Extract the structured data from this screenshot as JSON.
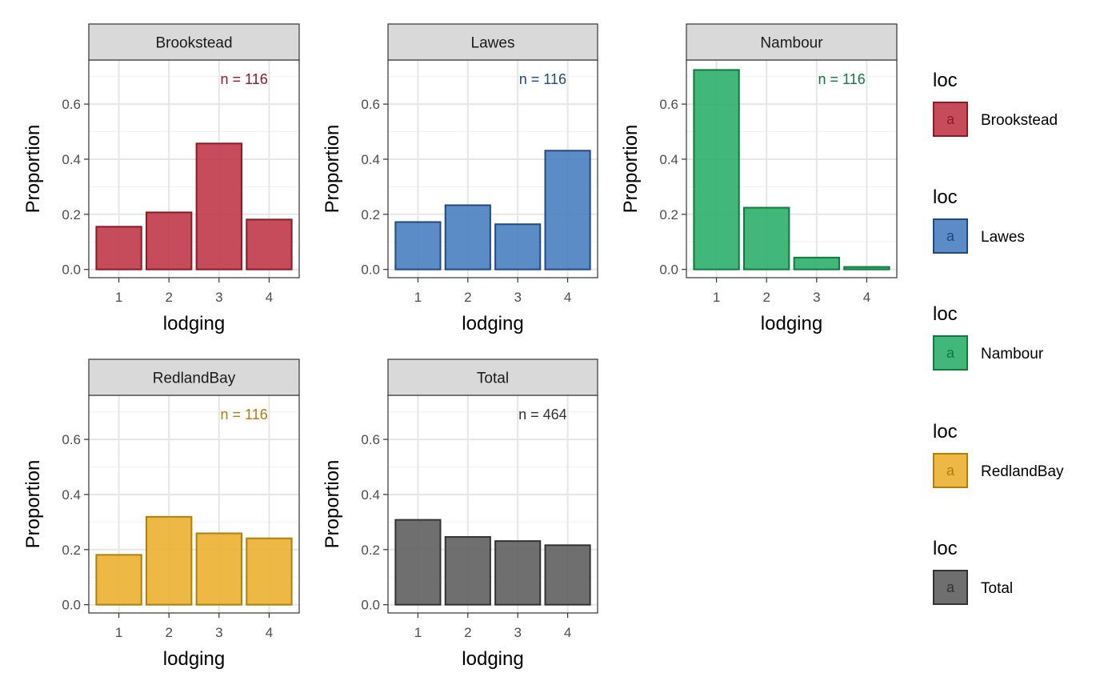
{
  "chart_data": [
    {
      "type": "bar",
      "facet": "Brookstead",
      "annotation": "n = 116",
      "color": "#c0394a",
      "border": "#8b1a24",
      "xlabel": "lodging",
      "ylabel": "Proportion",
      "categories": [
        "1",
        "2",
        "3",
        "4"
      ],
      "values": [
        0.155,
        0.207,
        0.457,
        0.181
      ],
      "ylim": [
        -0.03,
        0.76
      ],
      "yticks": [
        "0.0",
        "0.2",
        "0.4",
        "0.6"
      ]
    },
    {
      "type": "bar",
      "facet": "Lawes",
      "annotation": "n = 116",
      "color": "#4a7fbf",
      "border": "#1f4a82",
      "xlabel": "lodging",
      "ylabel": "Proportion",
      "categories": [
        "1",
        "2",
        "3",
        "4"
      ],
      "values": [
        0.172,
        0.233,
        0.164,
        0.431
      ],
      "ylim": [
        -0.03,
        0.76
      ],
      "yticks": [
        "0.0",
        "0.2",
        "0.4",
        "0.6"
      ]
    },
    {
      "type": "bar",
      "facet": "Nambour",
      "annotation": "n = 116",
      "color": "#2eaf6b",
      "border": "#0e7a3c",
      "xlabel": "lodging",
      "ylabel": "Proportion",
      "categories": [
        "1",
        "2",
        "3",
        "4"
      ],
      "values": [
        0.724,
        0.224,
        0.043,
        0.009
      ],
      "ylim": [
        -0.03,
        0.76
      ],
      "yticks": [
        "0.0",
        "0.2",
        "0.4",
        "0.6"
      ]
    },
    {
      "type": "bar",
      "facet": "RedlandBay",
      "annotation": "n = 116",
      "color": "#ebb030",
      "border": "#b07f0c",
      "xlabel": "lodging",
      "ylabel": "Proportion",
      "categories": [
        "1",
        "2",
        "3",
        "4"
      ],
      "values": [
        0.181,
        0.319,
        0.259,
        0.241
      ],
      "ylim": [
        -0.03,
        0.76
      ],
      "yticks": [
        "0.0",
        "0.2",
        "0.4",
        "0.6"
      ]
    },
    {
      "type": "bar",
      "facet": "Total",
      "annotation": "n = 464",
      "color": "#5f5f5f",
      "border": "#333333",
      "xlabel": "lodging",
      "ylabel": "Proportion",
      "categories": [
        "1",
        "2",
        "3",
        "4"
      ],
      "values": [
        0.308,
        0.246,
        0.231,
        0.216
      ],
      "ylim": [
        -0.03,
        0.76
      ],
      "yticks": [
        "0.0",
        "0.2",
        "0.4",
        "0.6"
      ]
    }
  ],
  "legend": [
    {
      "title": "loc",
      "label": "Brookstead",
      "key_glyph": "a",
      "color": "#c0394a",
      "border": "#8b1a24"
    },
    {
      "title": "loc",
      "label": "Lawes",
      "key_glyph": "a",
      "color": "#4a7fbf",
      "border": "#1f4a82"
    },
    {
      "title": "loc",
      "label": "Nambour",
      "key_glyph": "a",
      "color": "#2eaf6b",
      "border": "#0e7a3c"
    },
    {
      "title": "loc",
      "label": "RedlandBay",
      "key_glyph": "a",
      "color": "#ebb030",
      "border": "#b07f0c"
    },
    {
      "title": "loc",
      "label": "Total",
      "key_glyph": "a",
      "color": "#5f5f5f",
      "border": "#333333"
    }
  ]
}
